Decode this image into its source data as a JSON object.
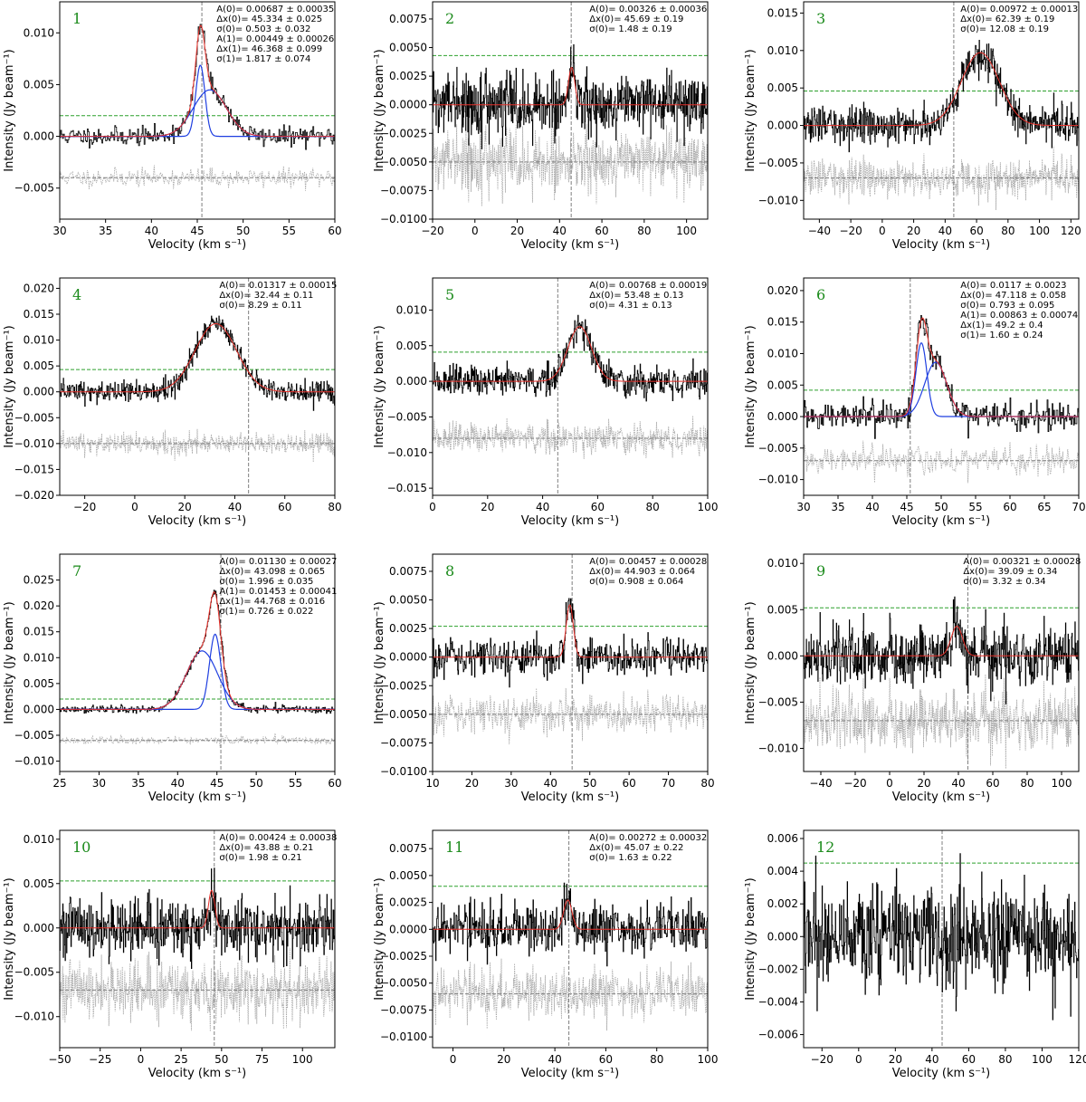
{
  "figure": {
    "xlabel": "Velocity (km s⁻¹)",
    "ylabel": "Intensity (Jy beam⁻¹)"
  },
  "colors": {
    "spectrum": "#000000",
    "residual": "#a8a8a8",
    "fit_total": "#e8302a",
    "fit_component": "#1f3fe0",
    "threshold": "#2ca02c",
    "marker": "#7f7f7f",
    "panel_number": "#1a8a1a"
  },
  "chart_data": [
    {
      "type": "line",
      "panel": "1",
      "xlim": [
        30,
        60
      ],
      "ylim": [
        -0.008,
        0.013
      ],
      "xticks": [
        30,
        35,
        40,
        45,
        50,
        55,
        60
      ],
      "yticks": [
        -0.005,
        0.0,
        0.005,
        0.01
      ],
      "ytick_labels": [
        "−0.005",
        "0.000",
        "0.005",
        "0.010"
      ],
      "sys_velocity": 45.5,
      "threshold": 0.002,
      "residual_offset": -0.004,
      "noise": 0.00045,
      "resolution": 0.1,
      "seed": 11,
      "components": [
        {
          "A": 0.00687,
          "x0": 45.334,
          "sigma": 0.503
        },
        {
          "A": 0.00449,
          "x0": 46.368,
          "sigma": 1.817
        }
      ],
      "annotations": [
        "A(0)= 0.00687 ±  0.00035",
        "Δx(0)= 45.334 ±   0.025",
        "σ(0)=  0.503 ±   0.032",
        "A(1)= 0.00449 ±  0.00026",
        "Δx(1)= 46.368 ±   0.099",
        "σ(1)=  1.817 ±   0.074"
      ]
    },
    {
      "type": "line",
      "panel": "2",
      "xlim": [
        -20,
        110
      ],
      "ylim": [
        -0.01,
        0.009
      ],
      "xticks": [
        -20,
        0,
        20,
        40,
        60,
        80,
        100
      ],
      "yticks": [
        -0.01,
        -0.0075,
        -0.005,
        -0.0025,
        0,
        0.0025,
        0.005,
        0.0075
      ],
      "ytick_labels": [
        "−0.0100",
        "−0.0075",
        "−0.0050",
        "−0.0025",
        "0.0000",
        "0.0025",
        "0.0050",
        "0.0075"
      ],
      "sys_velocity": 45.5,
      "threshold": 0.0043,
      "residual_offset": -0.005,
      "noise": 0.0013,
      "resolution": 0.2,
      "seed": 22,
      "components": [
        {
          "A": 0.00326,
          "x0": 45.69,
          "sigma": 1.48
        }
      ],
      "annotations": [
        "A(0)= 0.00326 ±  0.00036",
        "Δx(0)=  45.69 ±    0.19",
        "σ(0)=   1.48 ±    0.19"
      ]
    },
    {
      "type": "line",
      "panel": "3",
      "xlim": [
        -50,
        125
      ],
      "ylim": [
        -0.0125,
        0.0165
      ],
      "xticks": [
        -40,
        -20,
        0,
        20,
        40,
        60,
        80,
        100,
        120
      ],
      "yticks": [
        -0.01,
        -0.005,
        0,
        0.005,
        0.01,
        0.015
      ],
      "ytick_labels": [
        "−0.010",
        "−0.005",
        "0.000",
        "0.005",
        "0.010",
        "0.015"
      ],
      "sys_velocity": 45.5,
      "threshold": 0.0046,
      "residual_offset": -0.007,
      "noise": 0.0012,
      "resolution": 0.3,
      "seed": 33,
      "components": [
        {
          "A": 0.00972,
          "x0": 62.39,
          "sigma": 12.08
        }
      ],
      "annotations": [
        "A(0)= 0.00972 ±  0.00013",
        "Δx(0)=  62.39 ±    0.19",
        "σ(0)=  12.08 ±    0.19"
      ]
    },
    {
      "type": "line",
      "panel": "4",
      "xlim": [
        -30,
        80
      ],
      "ylim": [
        -0.02,
        0.022
      ],
      "xticks": [
        -20,
        0,
        20,
        40,
        60,
        80
      ],
      "yticks": [
        -0.02,
        -0.015,
        -0.01,
        -0.005,
        0,
        0.005,
        0.01,
        0.015,
        0.02
      ],
      "ytick_labels": [
        "−0.020",
        "−0.015",
        "−0.010",
        "−0.005",
        "0.000",
        "0.005",
        "0.010",
        "0.015",
        "0.020"
      ],
      "sys_velocity": 45.5,
      "threshold": 0.0043,
      "residual_offset": -0.01,
      "noise": 0.0011,
      "resolution": 0.2,
      "seed": 44,
      "components": [
        {
          "A": 0.01317,
          "x0": 32.44,
          "sigma": 8.29
        }
      ],
      "annotations": [
        "A(0)= 0.01317 ±  0.00015",
        "Δx(0)=  32.44 ±    0.11",
        "σ(0)=   8.29 ±    0.11"
      ]
    },
    {
      "type": "line",
      "panel": "5",
      "xlim": [
        0,
        100
      ],
      "ylim": [
        -0.016,
        0.0145
      ],
      "xticks": [
        0,
        20,
        40,
        60,
        80,
        100
      ],
      "yticks": [
        -0.015,
        -0.01,
        -0.005,
        0,
        0.005,
        0.01
      ],
      "ytick_labels": [
        "−0.015",
        "−0.010",
        "−0.005",
        "0.000",
        "0.005",
        "0.010"
      ],
      "sys_velocity": 45.5,
      "threshold": 0.0041,
      "residual_offset": -0.008,
      "noise": 0.0011,
      "resolution": 0.2,
      "seed": 55,
      "components": [
        {
          "A": 0.00768,
          "x0": 53.48,
          "sigma": 4.31
        }
      ],
      "annotations": [
        "A(0)= 0.00768 ±  0.00019",
        "Δx(0)=  53.48 ±    0.13",
        "σ(0)=   4.31 ±    0.13"
      ]
    },
    {
      "type": "line",
      "panel": "6",
      "xlim": [
        30,
        70
      ],
      "ylim": [
        -0.0125,
        0.022
      ],
      "xticks": [
        30,
        35,
        40,
        45,
        50,
        55,
        60,
        65,
        70
      ],
      "yticks": [
        -0.01,
        -0.005,
        0,
        0.005,
        0.01,
        0.015,
        0.02
      ],
      "ytick_labels": [
        "−0.010",
        "−0.005",
        "0.000",
        "0.005",
        "0.010",
        "0.015",
        "0.020"
      ],
      "sys_velocity": 45.5,
      "threshold": 0.0042,
      "residual_offset": -0.007,
      "noise": 0.0011,
      "resolution": 0.12,
      "seed": 66,
      "components": [
        {
          "A": 0.0117,
          "x0": 47.118,
          "sigma": 0.793
        },
        {
          "A": 0.00863,
          "x0": 49.2,
          "sigma": 1.6
        }
      ],
      "annotations": [
        "A(0)= 0.0117 ±  0.0023",
        "Δx(0)= 47.118 ±   0.058",
        "σ(0)=  0.793 ±   0.095",
        "A(1)= 0.00863 ±  0.00074",
        "Δx(1)=   49.2 ±     0.4",
        "σ(1)=   1.60 ±    0.24"
      ]
    },
    {
      "type": "line",
      "panel": "7",
      "xlim": [
        25,
        60
      ],
      "ylim": [
        -0.012,
        0.03
      ],
      "xticks": [
        25,
        30,
        35,
        40,
        45,
        50,
        55,
        60
      ],
      "yticks": [
        -0.01,
        -0.005,
        0,
        0.005,
        0.01,
        0.015,
        0.02,
        0.025
      ],
      "ytick_labels": [
        "−0.010",
        "−0.005",
        "0.000",
        "0.005",
        "0.010",
        "0.015",
        "0.020",
        "0.025"
      ],
      "sys_velocity": 45.5,
      "threshold": 0.002,
      "residual_offset": -0.006,
      "noise": 0.0004,
      "resolution": 0.1,
      "seed": 77,
      "components": [
        {
          "A": 0.0113,
          "x0": 43.098,
          "sigma": 1.996
        },
        {
          "A": 0.01453,
          "x0": 44.768,
          "sigma": 0.726
        }
      ],
      "annotations": [
        "A(0)= 0.01130 ±  0.00027",
        "Δx(0)= 43.098 ±   0.065",
        "σ(0)=  1.996 ±   0.035",
        "A(1)= 0.01453 ±  0.00041",
        "Δx(1)= 44.768 ±   0.016",
        "σ(1)=  0.726 ±   0.022"
      ]
    },
    {
      "type": "line",
      "panel": "8",
      "xlim": [
        10,
        80
      ],
      "ylim": [
        -0.01,
        0.009
      ],
      "xticks": [
        10,
        20,
        30,
        40,
        50,
        60,
        70,
        80
      ],
      "yticks": [
        -0.01,
        -0.0075,
        -0.005,
        -0.0025,
        0,
        0.0025,
        0.005,
        0.0075
      ],
      "ytick_labels": [
        "−0.0100",
        "−0.0075",
        "−0.0050",
        "−0.0025",
        "0.0000",
        "0.0025",
        "0.0050",
        "0.0075"
      ],
      "sys_velocity": 45.5,
      "threshold": 0.0027,
      "residual_offset": -0.005,
      "noise": 0.0008,
      "resolution": 0.15,
      "seed": 88,
      "components": [
        {
          "A": 0.00457,
          "x0": 44.903,
          "sigma": 0.908
        }
      ],
      "annotations": [
        "A(0)= 0.00457 ±  0.00028",
        "Δx(0)= 44.903 ±   0.064",
        "σ(0)=  0.908 ±   0.064"
      ]
    },
    {
      "type": "line",
      "panel": "9",
      "xlim": [
        -50,
        110
      ],
      "ylim": [
        -0.0125,
        0.011
      ],
      "xticks": [
        -40,
        -20,
        0,
        20,
        40,
        60,
        80,
        100
      ],
      "yticks": [
        -0.01,
        -0.005,
        0,
        0.005,
        0.01
      ],
      "ytick_labels": [
        "−0.010",
        "−0.005",
        "0.000",
        "0.005",
        "0.010"
      ],
      "sys_velocity": 45.5,
      "threshold": 0.0052,
      "residual_offset": -0.007,
      "noise": 0.0016,
      "resolution": 0.25,
      "seed": 99,
      "components": [
        {
          "A": 0.00321,
          "x0": 39.09,
          "sigma": 3.32
        }
      ],
      "annotations": [
        "A(0)= 0.00321 ±  0.00028",
        "Δx(0)=  39.09 ±    0.34",
        "σ(0)=   3.32 ±    0.34"
      ]
    },
    {
      "type": "line",
      "panel": "10",
      "xlim": [
        -50,
        120
      ],
      "ylim": [
        -0.0135,
        0.011
      ],
      "xticks": [
        -50,
        -25,
        0,
        25,
        50,
        75,
        100
      ],
      "yticks": [
        -0.01,
        -0.005,
        0,
        0.005,
        0.01
      ],
      "ytick_labels": [
        "−0.010",
        "−0.005",
        "0.000",
        "0.005",
        "0.010"
      ],
      "sys_velocity": 45.5,
      "threshold": 0.0053,
      "residual_offset": -0.007,
      "noise": 0.0017,
      "resolution": 0.3,
      "seed": 101,
      "components": [
        {
          "A": 0.00424,
          "x0": 43.88,
          "sigma": 1.98
        }
      ],
      "annotations": [
        "A(0)= 0.00424 ±  0.00038",
        "Δx(0)=  43.88 ±    0.21",
        "σ(0)=   1.98 ±    0.21"
      ]
    },
    {
      "type": "line",
      "panel": "11",
      "xlim": [
        -8,
        100
      ],
      "ylim": [
        -0.011,
        0.0092
      ],
      "xticks": [
        0,
        20,
        40,
        60,
        80,
        100
      ],
      "yticks": [
        -0.01,
        -0.0075,
        -0.005,
        -0.0025,
        0,
        0.0025,
        0.005,
        0.0075
      ],
      "ytick_labels": [
        "−0.0100",
        "−0.0075",
        "−0.0050",
        "−0.0025",
        "0.0000",
        "0.0025",
        "0.0050",
        "0.0075"
      ],
      "sys_velocity": 45.5,
      "threshold": 0.004,
      "residual_offset": -0.006,
      "noise": 0.0012,
      "resolution": 0.2,
      "seed": 111,
      "components": [
        {
          "A": 0.00272,
          "x0": 45.07,
          "sigma": 1.63
        }
      ],
      "annotations": [
        "A(0)= 0.00272 ±  0.00032",
        "Δx(0)=  45.07 ±    0.22",
        "σ(0)=   1.63 ±    0.22"
      ]
    },
    {
      "type": "line",
      "panel": "12",
      "xlim": [
        -30,
        120
      ],
      "ylim": [
        -0.0068,
        0.0065
      ],
      "xticks": [
        -20,
        0,
        20,
        40,
        60,
        80,
        100,
        120
      ],
      "yticks": [
        -0.006,
        -0.004,
        -0.002,
        0,
        0.002,
        0.004,
        0.006
      ],
      "ytick_labels": [
        "−0.006",
        "−0.004",
        "−0.002",
        "0.000",
        "0.002",
        "0.004",
        "0.006"
      ],
      "sys_velocity": 45.5,
      "threshold": 0.0045,
      "residual_offset": null,
      "noise": 0.0015,
      "resolution": 0.25,
      "seed": 121,
      "components": [],
      "annotations": []
    }
  ]
}
